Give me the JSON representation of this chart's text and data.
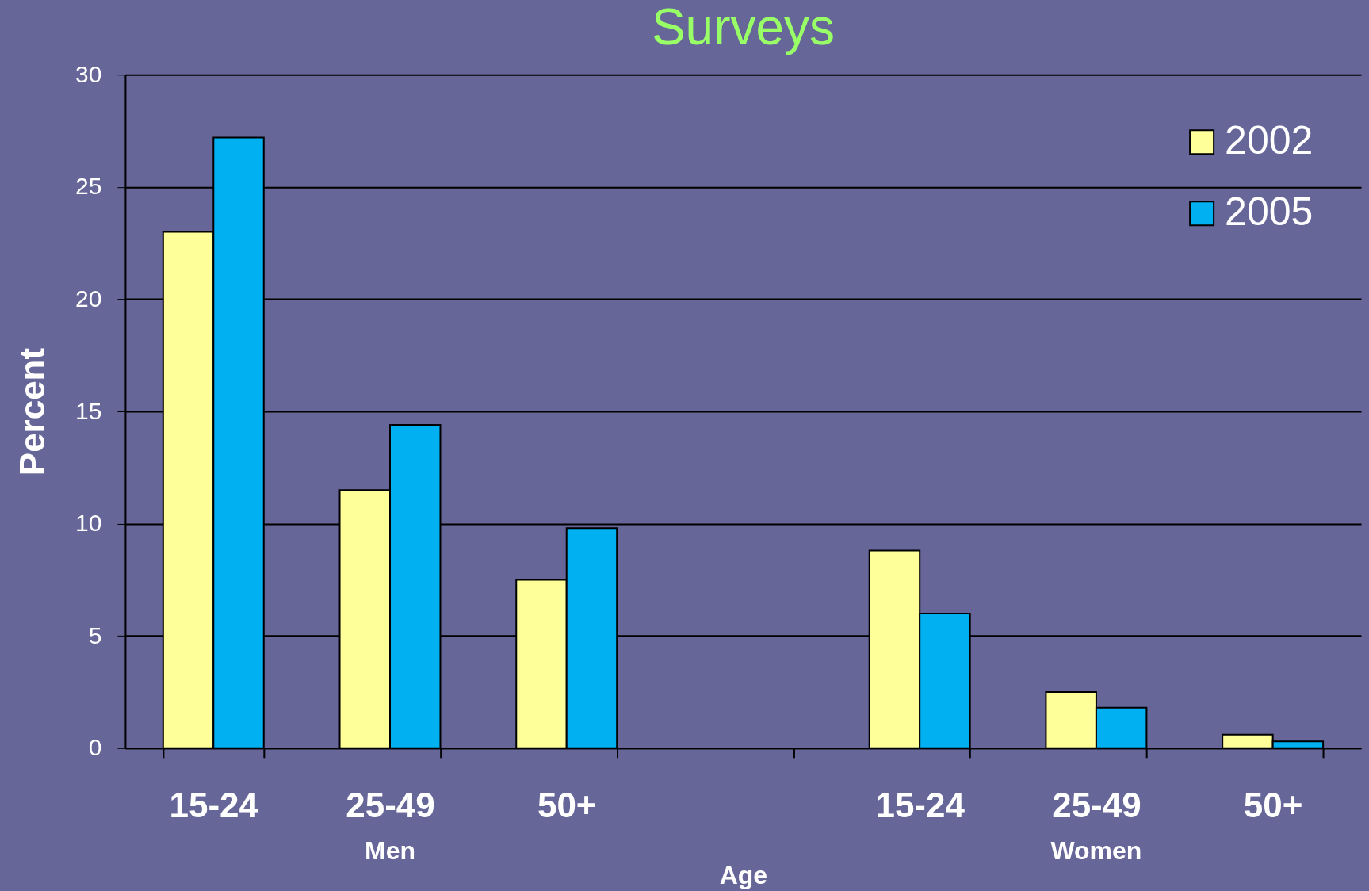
{
  "chart_data": {
    "type": "bar",
    "title": "Surveys",
    "xlabel": "Age",
    "ylabel": "Percent",
    "categories": [
      "15-24",
      "25-49",
      "50+",
      null,
      "15-24",
      "25-49",
      "50+"
    ],
    "series": [
      {
        "name": "2002",
        "color": "#ffff99",
        "values": [
          23.0,
          11.5,
          7.5,
          null,
          8.8,
          2.5,
          0.6
        ]
      },
      {
        "name": "2005",
        "color": "#00b0f0",
        "values": [
          27.2,
          14.4,
          9.8,
          null,
          6.0,
          1.8,
          0.3
        ]
      }
    ],
    "annotations": [
      "Men",
      "Women"
    ],
    "ylim": [
      0,
      30
    ],
    "yticks": [
      0,
      5,
      10,
      15,
      20,
      25,
      30
    ],
    "grid": "y",
    "legend": "top right"
  }
}
